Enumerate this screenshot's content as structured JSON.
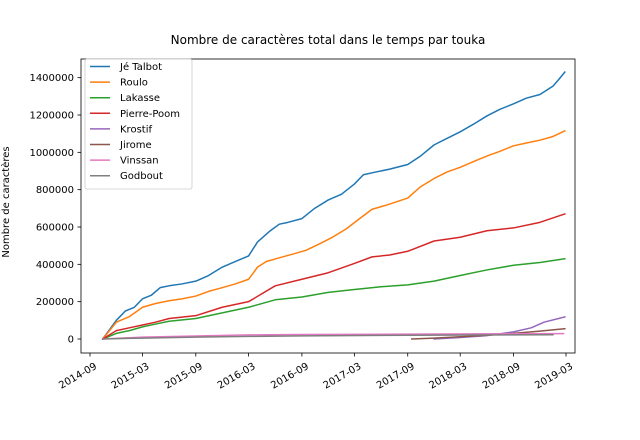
{
  "chart_data": {
    "type": "line",
    "title": "Nombre de caractères total dans le temps par touka",
    "xlabel": "",
    "ylabel": "Nombre de caractères",
    "x_ticks": [
      "2014-09",
      "2015-03",
      "2015-09",
      "2016-03",
      "2016-09",
      "2017-03",
      "2017-09",
      "2018-03",
      "2018-09",
      "2019-03"
    ],
    "y_ticks": [
      "0",
      "200000",
      "400000",
      "600000",
      "800000",
      "1000000",
      "1200000",
      "1400000"
    ],
    "xlim": [
      "2014-08-01",
      "2019-04-01"
    ],
    "ylim": [
      -75000,
      1500000
    ],
    "grid": false,
    "legend_position": "top-left",
    "series": [
      {
        "name": "Jé Talbot",
        "color": "#1f77b4",
        "points": [
          [
            "2014-10-15",
            0
          ],
          [
            "2014-12-01",
            100000
          ],
          [
            "2015-01-01",
            150000
          ],
          [
            "2015-02-01",
            170000
          ],
          [
            "2015-03-01",
            215000
          ],
          [
            "2015-04-01",
            235000
          ],
          [
            "2015-05-01",
            275000
          ],
          [
            "2015-06-01",
            285000
          ],
          [
            "2015-07-15",
            295000
          ],
          [
            "2015-09-01",
            310000
          ],
          [
            "2015-10-15",
            340000
          ],
          [
            "2015-12-01",
            385000
          ],
          [
            "2016-01-15",
            415000
          ],
          [
            "2016-03-01",
            445000
          ],
          [
            "2016-04-01",
            520000
          ],
          [
            "2016-05-15",
            580000
          ],
          [
            "2016-06-15",
            615000
          ],
          [
            "2016-07-15",
            625000
          ],
          [
            "2016-09-01",
            645000
          ],
          [
            "2016-10-15",
            700000
          ],
          [
            "2016-12-01",
            745000
          ],
          [
            "2017-01-15",
            775000
          ],
          [
            "2017-03-01",
            830000
          ],
          [
            "2017-04-01",
            880000
          ],
          [
            "2017-05-15",
            895000
          ],
          [
            "2017-07-01",
            910000
          ],
          [
            "2017-09-01",
            935000
          ],
          [
            "2017-10-15",
            980000
          ],
          [
            "2017-12-01",
            1040000
          ],
          [
            "2018-01-15",
            1075000
          ],
          [
            "2018-03-01",
            1110000
          ],
          [
            "2018-04-15",
            1150000
          ],
          [
            "2018-06-01",
            1195000
          ],
          [
            "2018-07-15",
            1230000
          ],
          [
            "2018-09-01",
            1260000
          ],
          [
            "2018-10-15",
            1290000
          ],
          [
            "2018-12-01",
            1310000
          ],
          [
            "2019-01-15",
            1355000
          ],
          [
            "2019-02-01",
            1385000
          ],
          [
            "2019-02-25",
            1430000
          ]
        ]
      },
      {
        "name": "Roulo",
        "color": "#ff7f0e",
        "points": [
          [
            "2014-10-15",
            0
          ],
          [
            "2014-12-01",
            90000
          ],
          [
            "2015-01-15",
            120000
          ],
          [
            "2015-03-01",
            170000
          ],
          [
            "2015-04-15",
            190000
          ],
          [
            "2015-06-01",
            205000
          ],
          [
            "2015-07-15",
            215000
          ],
          [
            "2015-09-01",
            230000
          ],
          [
            "2015-10-15",
            255000
          ],
          [
            "2015-12-01",
            275000
          ],
          [
            "2016-01-15",
            295000
          ],
          [
            "2016-03-01",
            320000
          ],
          [
            "2016-04-01",
            385000
          ],
          [
            "2016-05-01",
            415000
          ],
          [
            "2016-06-15",
            435000
          ],
          [
            "2016-08-01",
            455000
          ],
          [
            "2016-09-15",
            475000
          ],
          [
            "2016-11-01",
            510000
          ],
          [
            "2016-12-15",
            545000
          ],
          [
            "2017-02-01",
            590000
          ],
          [
            "2017-03-15",
            640000
          ],
          [
            "2017-05-01",
            695000
          ],
          [
            "2017-06-15",
            715000
          ],
          [
            "2017-09-01",
            755000
          ],
          [
            "2017-10-15",
            815000
          ],
          [
            "2017-12-01",
            860000
          ],
          [
            "2018-01-15",
            895000
          ],
          [
            "2018-03-01",
            920000
          ],
          [
            "2018-04-15",
            950000
          ],
          [
            "2018-06-01",
            980000
          ],
          [
            "2018-07-15",
            1005000
          ],
          [
            "2018-09-01",
            1035000
          ],
          [
            "2018-10-15",
            1050000
          ],
          [
            "2018-12-01",
            1065000
          ],
          [
            "2019-01-15",
            1085000
          ],
          [
            "2019-02-25",
            1115000
          ]
        ]
      },
      {
        "name": "Lakasse",
        "color": "#2ca02c",
        "points": [
          [
            "2014-10-15",
            0
          ],
          [
            "2014-12-01",
            30000
          ],
          [
            "2015-01-15",
            45000
          ],
          [
            "2015-03-01",
            65000
          ],
          [
            "2015-04-15",
            80000
          ],
          [
            "2015-06-01",
            95000
          ],
          [
            "2015-09-01",
            110000
          ],
          [
            "2015-12-01",
            140000
          ],
          [
            "2016-03-01",
            170000
          ],
          [
            "2016-06-01",
            210000
          ],
          [
            "2016-09-01",
            225000
          ],
          [
            "2016-12-01",
            250000
          ],
          [
            "2017-03-01",
            265000
          ],
          [
            "2017-06-01",
            280000
          ],
          [
            "2017-09-01",
            290000
          ],
          [
            "2017-12-01",
            310000
          ],
          [
            "2018-03-01",
            340000
          ],
          [
            "2018-06-01",
            370000
          ],
          [
            "2018-09-01",
            395000
          ],
          [
            "2018-12-01",
            410000
          ],
          [
            "2019-02-25",
            430000
          ]
        ]
      },
      {
        "name": "Pierre-Poom",
        "color": "#d62728",
        "points": [
          [
            "2014-10-15",
            0
          ],
          [
            "2014-12-01",
            45000
          ],
          [
            "2015-01-15",
            60000
          ],
          [
            "2015-03-01",
            75000
          ],
          [
            "2015-04-15",
            90000
          ],
          [
            "2015-06-01",
            110000
          ],
          [
            "2015-09-01",
            125000
          ],
          [
            "2015-12-01",
            170000
          ],
          [
            "2016-03-01",
            200000
          ],
          [
            "2016-06-01",
            285000
          ],
          [
            "2016-09-01",
            320000
          ],
          [
            "2016-12-01",
            355000
          ],
          [
            "2017-03-01",
            405000
          ],
          [
            "2017-05-01",
            440000
          ],
          [
            "2017-07-01",
            450000
          ],
          [
            "2017-09-01",
            470000
          ],
          [
            "2017-12-01",
            525000
          ],
          [
            "2018-03-01",
            545000
          ],
          [
            "2018-06-01",
            580000
          ],
          [
            "2018-09-01",
            595000
          ],
          [
            "2018-12-01",
            625000
          ],
          [
            "2019-02-25",
            670000
          ]
        ]
      },
      {
        "name": "Krostif",
        "color": "#9467bd",
        "points": [
          [
            "2017-12-01",
            0
          ],
          [
            "2018-03-01",
            8000
          ],
          [
            "2018-06-01",
            18000
          ],
          [
            "2018-09-01",
            38000
          ],
          [
            "2018-11-01",
            60000
          ],
          [
            "2018-12-15",
            90000
          ],
          [
            "2019-02-25",
            118000
          ]
        ]
      },
      {
        "name": "Jirome",
        "color": "#8c564b",
        "points": [
          [
            "2017-09-15",
            0
          ],
          [
            "2017-12-01",
            5000
          ],
          [
            "2018-03-01",
            12000
          ],
          [
            "2018-06-01",
            20000
          ],
          [
            "2018-09-01",
            30000
          ],
          [
            "2018-12-01",
            42000
          ],
          [
            "2019-02-25",
            55000
          ]
        ]
      },
      {
        "name": "Vinssan",
        "color": "#e377c2",
        "points": [
          [
            "2014-10-15",
            0
          ],
          [
            "2015-03-01",
            10000
          ],
          [
            "2015-09-01",
            16000
          ],
          [
            "2016-03-01",
            22000
          ],
          [
            "2016-09-01",
            24000
          ],
          [
            "2017-09-01",
            26000
          ],
          [
            "2018-09-01",
            28000
          ],
          [
            "2019-02-20",
            29000
          ]
        ]
      },
      {
        "name": "Godbout",
        "color": "#7f7f7f",
        "points": [
          [
            "2014-10-15",
            0
          ],
          [
            "2015-03-01",
            5000
          ],
          [
            "2015-09-01",
            10000
          ],
          [
            "2016-03-01",
            14000
          ],
          [
            "2016-09-01",
            17000
          ],
          [
            "2017-09-01",
            20000
          ],
          [
            "2018-09-01",
            22000
          ],
          [
            "2019-01-15",
            23000
          ]
        ]
      }
    ]
  }
}
